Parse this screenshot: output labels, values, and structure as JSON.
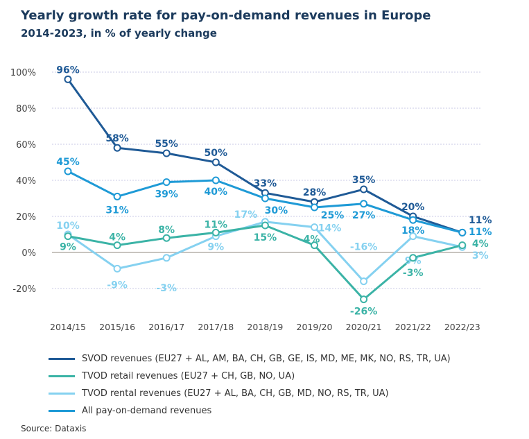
{
  "title": "Yearly growth rate for pay-on-demand revenues in Europe",
  "subtitle": "2014-2023, in % of yearly change",
  "source": "Source: Dataxis",
  "chart_data": {
    "type": "line",
    "categories": [
      "2014/15",
      "2015/16",
      "2016/17",
      "2017/18",
      "2018/19",
      "2019/20",
      "2020/21",
      "2021/22",
      "2022/23"
    ],
    "ylim": [
      -20,
      100
    ],
    "yticks": [
      -20,
      0,
      20,
      40,
      60,
      80,
      100
    ],
    "ytick_labels": [
      "-20%",
      "0%",
      "20%",
      "40%",
      "60%",
      "80%",
      "100%"
    ],
    "grid": true,
    "legend_position": "bottom",
    "series": [
      {
        "name": "SVOD revenues (EU27 + AL, AM, BA, CH, GB, GE, IS, MD, ME, MK, NO, RS, TR, UA)",
        "color": "#1f5a96",
        "values": [
          96,
          58,
          55,
          50,
          33,
          28,
          35,
          20,
          11
        ]
      },
      {
        "name": "TVOD retail revenues (EU27 + CH, GB, NO, UA)",
        "color": "#3bb3a6",
        "values": [
          9,
          4,
          8,
          11,
          15,
          4,
          -26,
          -3,
          4
        ]
      },
      {
        "name": "TVOD rental revenues (EU27 + AL, BA, CH, GB, MD, NO, RS, TR, UA)",
        "color": "#85d1f0",
        "values": [
          10,
          -9,
          -3,
          9,
          17,
          14,
          -16,
          9,
          3
        ]
      },
      {
        "name": "All pay-on-demand revenues",
        "color": "#1e9ad6",
        "values": [
          45,
          31,
          39,
          40,
          30,
          25,
          27,
          18,
          11
        ]
      }
    ]
  }
}
